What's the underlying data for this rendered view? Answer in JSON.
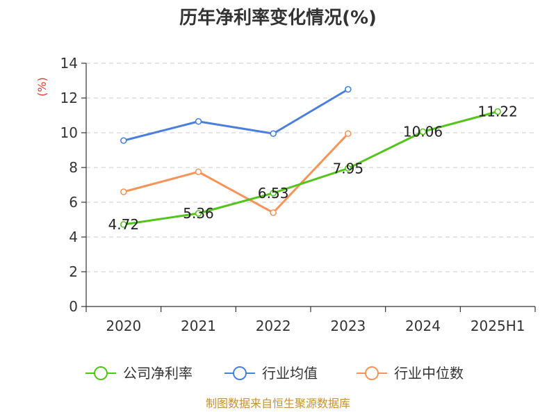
{
  "chart_data": {
    "type": "line",
    "title": "历年净利率变化情况(%)",
    "ylabel": "(%)",
    "categories": [
      "2020",
      "2021",
      "2022",
      "2023",
      "2024",
      "2025H1"
    ],
    "ylim": [
      0,
      14
    ],
    "yticks": [
      "0",
      "2",
      "4",
      "6",
      "8",
      "10",
      "12",
      "14"
    ],
    "grid": true,
    "legend_position": "bottom",
    "series": [
      {
        "name": "公司净利率",
        "color": "#52c41a",
        "values": [
          4.72,
          5.36,
          6.53,
          7.95,
          10.06,
          11.22
        ],
        "labels": [
          "4.72",
          "5.36",
          "6.53",
          "7.95",
          "10.06",
          "11.22"
        ]
      },
      {
        "name": "行业均值",
        "color": "#4a7fdc",
        "values": [
          9.55,
          10.65,
          9.95,
          12.5,
          null,
          null
        ]
      },
      {
        "name": "行业中位数",
        "color": "#f89358",
        "values": [
          6.6,
          7.75,
          5.4,
          9.95,
          null,
          null
        ]
      }
    ]
  },
  "footer": "制图数据来自恒生聚源数据库"
}
